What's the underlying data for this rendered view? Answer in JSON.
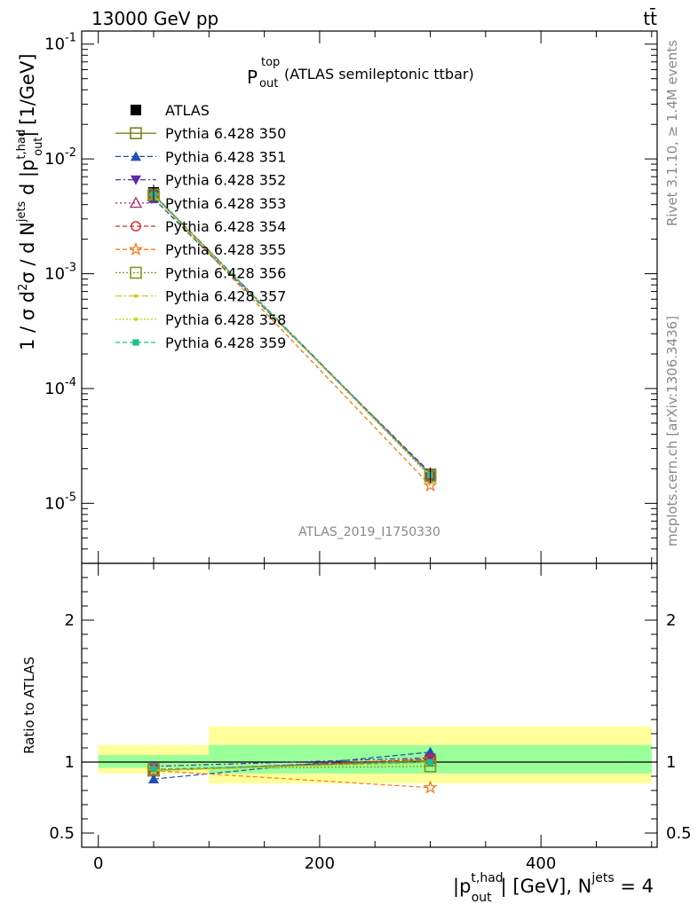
{
  "header": {
    "energy_label": "13000 GeV pp",
    "process_label": "tt̄",
    "analysis_id": "ATLAS_2019_I1750330",
    "side_rivet": "Rivet 3.1.10, ≥ 1.4M events",
    "side_mcplots": "mcplots.cern.ch [arXiv:1306.3436]"
  },
  "legend_title": {
    "main": "P",
    "sup": "top",
    "sub": "out",
    "rest": " (ATLAS semileptonic ttbar)"
  },
  "upper_ylabel": "1 / σ d²σ / d N^jets d |p_out^t,had| [1/GeV]",
  "lower_ylabel": "Ratio to ATLAS",
  "xlabel": "|p_out^t,had| [GeV], N^jets = 4",
  "chart_data": [
    {
      "type": "scatter",
      "panel": "main",
      "log_y": true,
      "xlim": [
        -15,
        505
      ],
      "ylim": [
        3e-06,
        0.13
      ],
      "x": [
        50,
        300
      ],
      "y_tick_labels": [
        "10^-5",
        "10^-4",
        "10^-3",
        "10^-2",
        "10^-1"
      ],
      "legend_placement": "top-left",
      "series": [
        {
          "name": "ATLAS",
          "marker": "square-filled",
          "color": "#000000",
          "dash": "",
          "values": [
            0.0051,
            1.75e-05
          ]
        },
        {
          "name": "Pythia 6.428 350",
          "marker": "square-open",
          "color": "#7f7f1a",
          "dash": "",
          "values": [
            0.0048,
            1.78e-05
          ]
        },
        {
          "name": "Pythia 6.428 351",
          "marker": "triangle-up-filled",
          "color": "#1f4fb4",
          "dash": "6,3",
          "values": [
            0.0045,
            1.85e-05
          ]
        },
        {
          "name": "Pythia 6.428 352",
          "marker": "triangle-down-filled",
          "color": "#5a2bb0",
          "dash": "6,3,2,3",
          "values": [
            0.0049,
            1.8e-05
          ]
        },
        {
          "name": "Pythia 6.428 353",
          "marker": "triangle-up-open",
          "color": "#b0306a",
          "dash": "2,3",
          "values": [
            0.0048,
            1.79e-05
          ]
        },
        {
          "name": "Pythia 6.428 354",
          "marker": "circle-open",
          "color": "#d62728",
          "dash": "5,3",
          "values": [
            0.0048,
            1.79e-05
          ]
        },
        {
          "name": "Pythia 6.428 355",
          "marker": "star-open",
          "color": "#f07a20",
          "dash": "5,3",
          "values": [
            0.0048,
            1.43e-05
          ]
        },
        {
          "name": "Pythia 6.428 356",
          "marker": "square-open",
          "color": "#7f9a1a",
          "dash": "2,2",
          "values": [
            0.0049,
            1.72e-05
          ]
        },
        {
          "name": "Pythia 6.428 357",
          "marker": "dot",
          "color": "#d4c21a",
          "dash": "7,3,2,3",
          "values": [
            0.0048,
            1.76e-05
          ]
        },
        {
          "name": "Pythia 6.428 358",
          "marker": "dot",
          "color": "#c7d91a",
          "dash": "2,2",
          "values": [
            0.0048,
            1.75e-05
          ]
        },
        {
          "name": "Pythia 6.428 359",
          "marker": "square-filled-small",
          "color": "#1dbf8a",
          "dash": "5,3",
          "values": [
            0.0049,
            1.76e-05
          ]
        }
      ]
    },
    {
      "type": "scatter",
      "panel": "ratio",
      "xlim": [
        -15,
        505
      ],
      "ylim": [
        0.4,
        2.4
      ],
      "x": [
        50,
        300
      ],
      "x_tick_labels": [
        "0",
        "200",
        "400"
      ],
      "y_tick_labels": [
        "0.5",
        "1",
        "2"
      ],
      "bands": [
        {
          "x": [
            0,
            100
          ],
          "inner": [
            0.96,
            1.05
          ],
          "outer": [
            0.92,
            1.12
          ]
        },
        {
          "x": [
            100,
            500
          ],
          "inner": [
            0.92,
            1.12
          ],
          "outer": [
            0.85,
            1.25
          ]
        }
      ],
      "series": [
        {
          "name": "Pythia 6.428 350",
          "values": [
            0.94,
            1.01
          ]
        },
        {
          "name": "Pythia 6.428 351",
          "values": [
            0.88,
            1.07
          ]
        },
        {
          "name": "Pythia 6.428 352",
          "values": [
            0.97,
            1.03
          ]
        },
        {
          "name": "Pythia 6.428 353",
          "values": [
            0.94,
            1.02
          ]
        },
        {
          "name": "Pythia 6.428 354",
          "values": [
            0.94,
            1.02
          ]
        },
        {
          "name": "Pythia 6.428 355",
          "values": [
            0.94,
            0.82
          ]
        },
        {
          "name": "Pythia 6.428 356",
          "values": [
            0.95,
            0.97
          ]
        },
        {
          "name": "Pythia 6.428 357",
          "values": [
            0.94,
            1.0
          ]
        },
        {
          "name": "Pythia 6.428 358",
          "values": [
            0.94,
            0.99
          ]
        },
        {
          "name": "Pythia 6.428 359",
          "values": [
            0.95,
            1.0
          ]
        }
      ]
    }
  ]
}
